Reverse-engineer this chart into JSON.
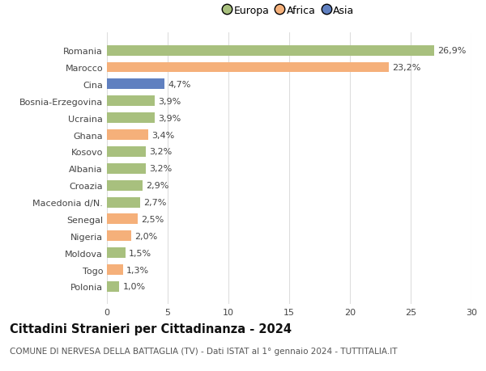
{
  "categories": [
    "Romania",
    "Marocco",
    "Cina",
    "Bosnia-Erzegovina",
    "Ucraina",
    "Ghana",
    "Kosovo",
    "Albania",
    "Croazia",
    "Macedonia d/N.",
    "Senegal",
    "Nigeria",
    "Moldova",
    "Togo",
    "Polonia"
  ],
  "values": [
    26.9,
    23.2,
    4.7,
    3.9,
    3.9,
    3.4,
    3.2,
    3.2,
    2.9,
    2.7,
    2.5,
    2.0,
    1.5,
    1.3,
    1.0
  ],
  "labels": [
    "26,9%",
    "23,2%",
    "4,7%",
    "3,9%",
    "3,9%",
    "3,4%",
    "3,2%",
    "3,2%",
    "2,9%",
    "2,7%",
    "2,5%",
    "2,0%",
    "1,5%",
    "1,3%",
    "1,0%"
  ],
  "continents": [
    "Europa",
    "Africa",
    "Asia",
    "Europa",
    "Europa",
    "Africa",
    "Europa",
    "Europa",
    "Europa",
    "Europa",
    "Africa",
    "Africa",
    "Europa",
    "Africa",
    "Europa"
  ],
  "colors": {
    "Europa": "#a8c07e",
    "Africa": "#f5b07a",
    "Asia": "#6080c0"
  },
  "xlim": [
    0,
    30
  ],
  "xticks": [
    0,
    5,
    10,
    15,
    20,
    25,
    30
  ],
  "title": "Cittadini Stranieri per Cittadinanza - 2024",
  "subtitle": "COMUNE DI NERVESA DELLA BATTAGLIA (TV) - Dati ISTAT al 1° gennaio 2024 - TUTTITALIA.IT",
  "background_color": "#ffffff",
  "grid_color": "#dddddd",
  "bar_height": 0.62,
  "label_fontsize": 8.0,
  "tick_fontsize": 8.0,
  "title_fontsize": 10.5,
  "subtitle_fontsize": 7.5
}
